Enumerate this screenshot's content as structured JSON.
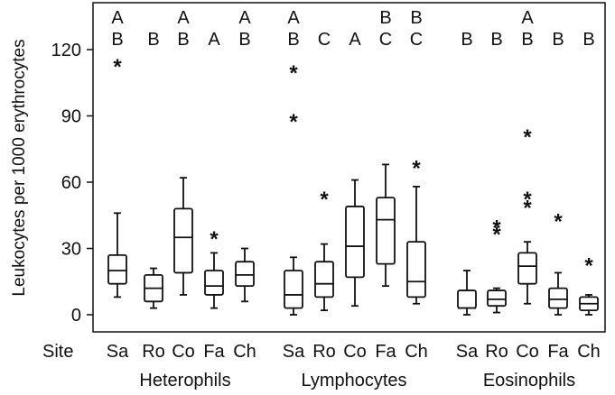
{
  "chart_data": {
    "type": "boxplot",
    "ylabel": "Leukocytes per 1000 erythrocytes",
    "yticks": [
      0,
      30,
      60,
      90,
      120
    ],
    "ylim": [
      -5,
      140
    ],
    "site_label": "Site",
    "groups": [
      {
        "name": "Heterophils",
        "boxes": [
          {
            "site": "Sa",
            "whisker_low": 8,
            "q1": 14,
            "median": 20,
            "q3": 27,
            "whisker_high": 46,
            "outliers": [
              116
            ],
            "letters": [
              "A",
              "B"
            ]
          },
          {
            "site": "Ro",
            "whisker_low": 3,
            "q1": 6,
            "median": 12,
            "q3": 18,
            "whisker_high": 21,
            "outliers": [],
            "letters": [
              "B"
            ]
          },
          {
            "site": "Co",
            "whisker_low": 9,
            "q1": 19,
            "median": 35,
            "q3": 48,
            "whisker_high": 62,
            "outliers": [],
            "letters": [
              "A",
              "B"
            ]
          },
          {
            "site": "Fa",
            "whisker_low": 3,
            "q1": 9,
            "median": 13,
            "q3": 20,
            "whisker_high": 28,
            "outliers": [
              38
            ],
            "letters": [
              "A"
            ]
          },
          {
            "site": "Ch",
            "whisker_low": 6,
            "q1": 13,
            "median": 18,
            "q3": 24,
            "whisker_high": 30,
            "outliers": [],
            "letters": [
              "A",
              "B"
            ]
          }
        ]
      },
      {
        "name": "Lymphocytes",
        "boxes": [
          {
            "site": "Sa",
            "whisker_low": 0,
            "q1": 3,
            "median": 9,
            "q3": 20,
            "whisker_high": 26,
            "outliers": [
              113,
              91
            ],
            "letters": [
              "A",
              "B"
            ]
          },
          {
            "site": "Ro",
            "whisker_low": 2,
            "q1": 8,
            "median": 14,
            "q3": 24,
            "whisker_high": 32,
            "outliers": [
              56
            ],
            "letters": [
              "C"
            ]
          },
          {
            "site": "Co",
            "whisker_low": 4,
            "q1": 17,
            "median": 31,
            "q3": 49,
            "whisker_high": 61,
            "outliers": [],
            "letters": [
              "A"
            ]
          },
          {
            "site": "Fa",
            "whisker_low": 13,
            "q1": 23,
            "median": 43,
            "q3": 53,
            "whisker_high": 68,
            "outliers": [],
            "letters": [
              "B",
              "C"
            ]
          },
          {
            "site": "Ch",
            "whisker_low": 5,
            "q1": 8,
            "median": 15,
            "q3": 33,
            "whisker_high": 58,
            "outliers": [
              70
            ],
            "letters": [
              "B",
              "C"
            ]
          }
        ]
      },
      {
        "name": "Eosinophils",
        "boxes": [
          {
            "site": "Sa",
            "whisker_low": 0,
            "q1": 3,
            "median": 3,
            "q3": 11,
            "whisker_high": 20,
            "outliers": [],
            "letters": [
              "B"
            ]
          },
          {
            "site": "Ro",
            "whisker_low": 1,
            "q1": 4,
            "median": 7,
            "q3": 11,
            "whisker_high": 12,
            "outliers": [
              43,
              40
            ],
            "letters": [
              "B"
            ]
          },
          {
            "site": "Co",
            "whisker_low": 5,
            "q1": 14,
            "median": 22,
            "q3": 28,
            "whisker_high": 33,
            "outliers": [
              84,
              56,
              52
            ],
            "letters": [
              "A",
              "B"
            ]
          },
          {
            "site": "Fa",
            "whisker_low": 0,
            "q1": 3,
            "median": 7,
            "q3": 12,
            "whisker_high": 19,
            "outliers": [
              46
            ],
            "letters": [
              "B"
            ]
          },
          {
            "site": "Ch",
            "whisker_low": 0,
            "q1": 2,
            "median": 5,
            "q3": 8,
            "whisker_high": 9,
            "outliers": [
              26
            ],
            "letters": [
              "B"
            ]
          }
        ]
      }
    ]
  }
}
